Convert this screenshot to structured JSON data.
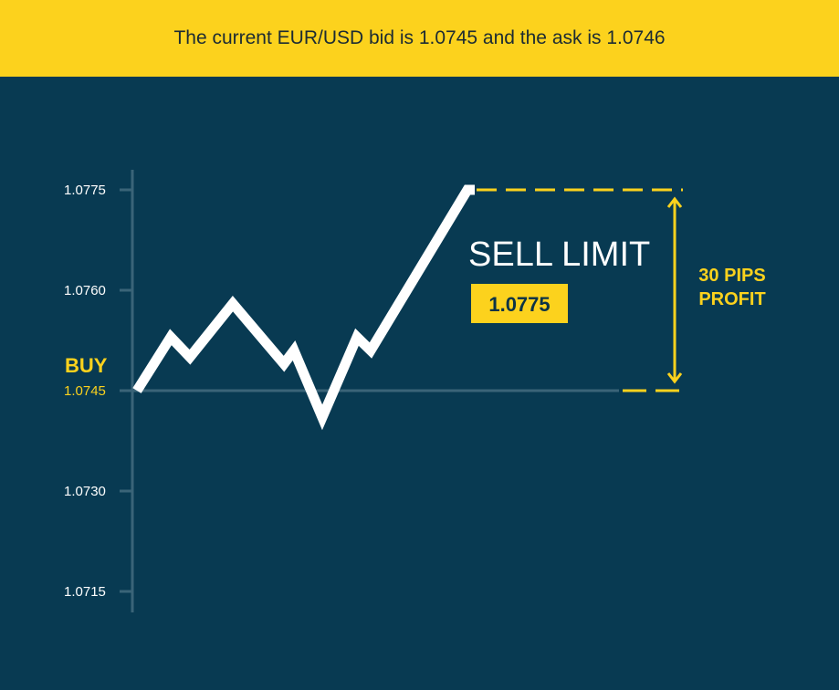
{
  "banner": {
    "text": "The current EUR/USD bid is 1.0745 and the ask is 1.0746"
  },
  "colors": {
    "background": "#083a52",
    "banner": "#fcd21d",
    "accent_yellow": "#fcd21d",
    "axis": "#3a6478",
    "line": "#ffffff",
    "tick_text": "#ffffff"
  },
  "chart_data": {
    "type": "line",
    "y_ticks": [
      1.0775,
      1.076,
      1.0745,
      1.073,
      1.0715
    ],
    "y_tick_labels": [
      "1.0775",
      "1.0760",
      "1.0745",
      "1.0730",
      "1.0715"
    ],
    "ylim": [
      1.0711,
      1.0778
    ],
    "grid": false,
    "series": [
      {
        "values": [
          1.0745,
          1.0753,
          1.075,
          1.0758,
          1.0749,
          1.0751,
          1.0741,
          1.0753,
          1.0751,
          1.0775,
          1.0775
        ]
      }
    ],
    "buy_level": 1.0745,
    "sell_limit_level": 1.0775,
    "annotations": {
      "buy_label": "BUY",
      "buy_price": "1.0745",
      "sell_limit_label": "SELL LIMIT",
      "sell_limit_price": "1.0775",
      "profit_line1": "30 PIPS",
      "profit_line2": "PROFIT"
    }
  }
}
